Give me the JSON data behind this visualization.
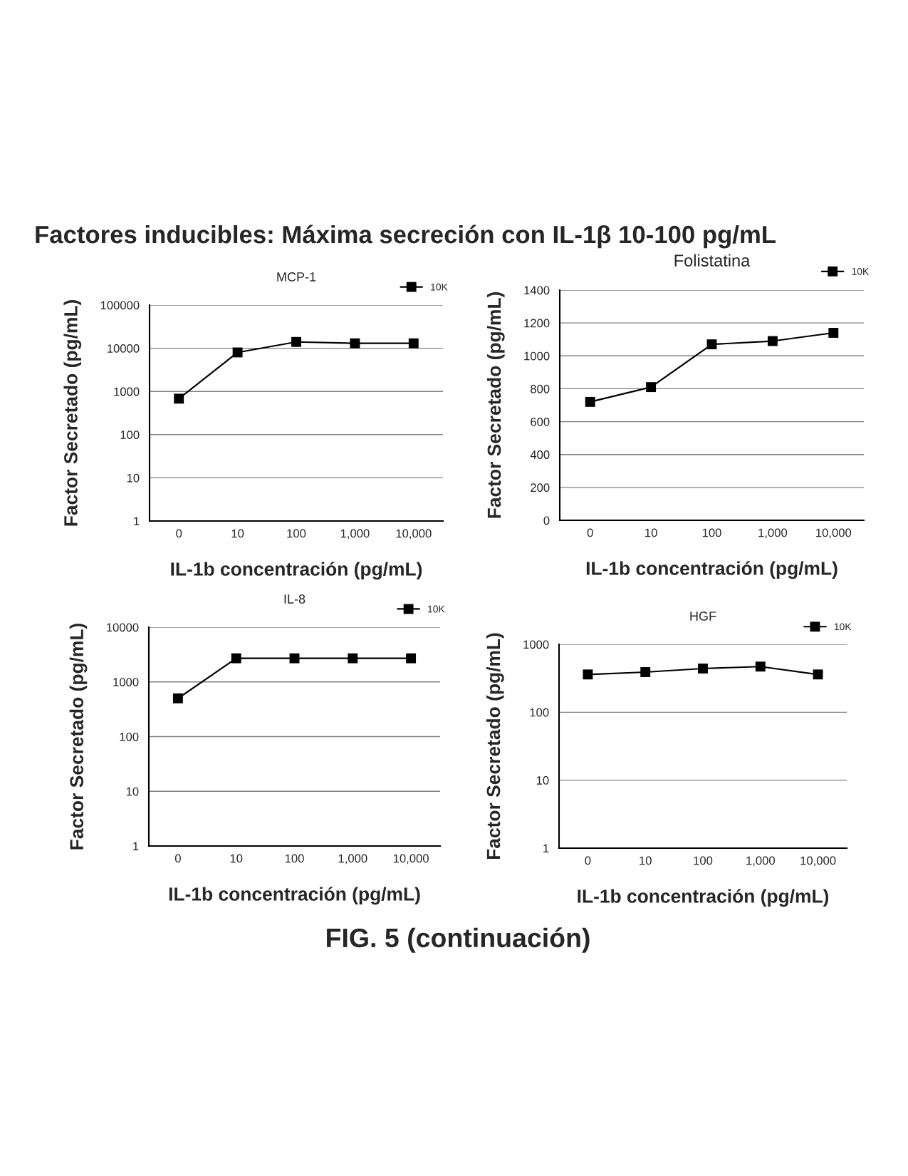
{
  "chart_data": [
    {
      "type": "line",
      "title": "MCP-1",
      "xlabel": "IL-1b concentración (pg/mL)",
      "ylabel": "Factor Secretado (pg/mL)",
      "annotations": [
        "Factores inducibles: Máxima secreción con IL-1β 10-100 pg/mL",
        "FIG. 5 (continuación)"
      ],
      "categories": [
        "0",
        "10",
        "100",
        "1,000",
        "10,000"
      ],
      "series": [
        {
          "name": "10K",
          "color": "#000000",
          "values": [
            680,
            8000,
            14000,
            13000,
            13000
          ]
        }
      ],
      "log": true,
      "ylim": [
        1,
        100000
      ],
      "yticks": [
        1,
        10,
        100,
        1000,
        10000,
        100000
      ],
      "grid": "y",
      "legend": "top right",
      "marker": "square"
    },
    {
      "type": "line",
      "title": "Folistatina",
      "xlabel": "IL-1b concentración (pg/mL)",
      "ylabel": "Factor Secretado (pg/mL)",
      "categories": [
        "0",
        "10",
        "100",
        "1,000",
        "10,000"
      ],
      "series": [
        {
          "name": "10K",
          "color": "#000000",
          "values": [
            720,
            810,
            1070,
            1090,
            1140
          ]
        }
      ],
      "ylim": [
        0,
        1400
      ],
      "yticks": [
        0,
        200,
        400,
        600,
        800,
        1000,
        1200,
        1400
      ],
      "grid": "y",
      "legend": "top right",
      "marker": "square"
    },
    {
      "type": "line",
      "title": "IL-8",
      "xlabel": "IL-1b concentración (pg/mL)",
      "ylabel": "Factor Secretado (pg/mL)",
      "categories": [
        "0",
        "10",
        "100",
        "1,000",
        "10,000"
      ],
      "series": [
        {
          "name": "10K",
          "color": "#000000",
          "values": [
            500,
            2700,
            2700,
            2700,
            2700
          ]
        }
      ],
      "log": true,
      "ylim": [
        1,
        10000
      ],
      "yticks": [
        1,
        10,
        100,
        1000,
        10000
      ],
      "grid": "y",
      "legend": "top right",
      "marker": "square"
    },
    {
      "type": "line",
      "title": "HGF",
      "xlabel": "IL-1b concentración (pg/mL)",
      "ylabel": "Factor Secretado (pg/mL)",
      "categories": [
        "0",
        "10",
        "100",
        "1,000",
        "10,000"
      ],
      "series": [
        {
          "name": "10K",
          "color": "#000000",
          "values": [
            360,
            390,
            440,
            470,
            360
          ]
        }
      ],
      "log": true,
      "ylim": [
        1,
        1000
      ],
      "yticks": [
        1,
        10,
        100,
        1000
      ],
      "grid": "y",
      "legend": "top right",
      "marker": "square"
    }
  ]
}
